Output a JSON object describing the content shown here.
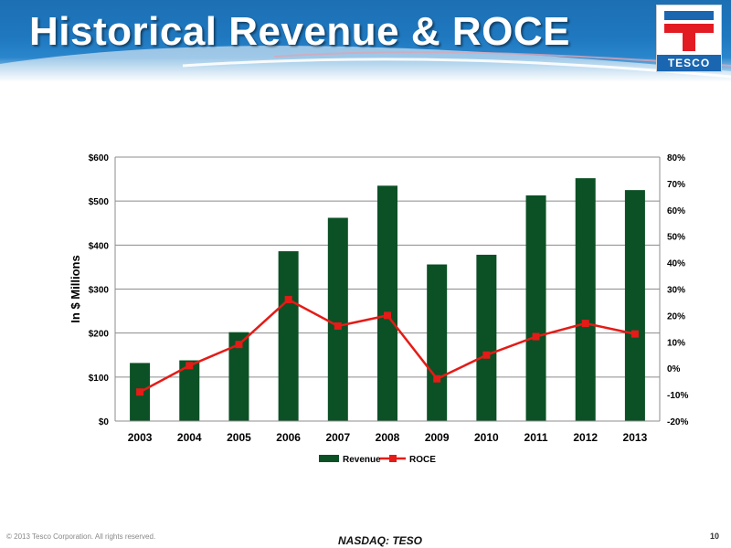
{
  "slide": {
    "title": "Historical Revenue & ROCE",
    "logo_text": "TESCO",
    "footer_copyright": "© 2013 Tesco Corporation. All rights reserved.",
    "footer_ticker": "NASDAQ: TESO",
    "page_number": "10"
  },
  "colors": {
    "revenue_bar": "#0b5125",
    "roce_line": "#e41b17",
    "header_blue": "#1f78bf",
    "logo_red": "#e31b23",
    "logo_blue": "#1a66b0"
  },
  "chart_data": {
    "type": "bar",
    "categories": [
      "2003",
      "2004",
      "2005",
      "2006",
      "2007",
      "2008",
      "2009",
      "2010",
      "2011",
      "2012",
      "2013"
    ],
    "series": [
      {
        "name": "Revenue",
        "type": "bar",
        "axis": "left",
        "values": [
          132,
          138,
          202,
          386,
          462,
          535,
          356,
          378,
          513,
          552,
          525
        ]
      },
      {
        "name": "ROCE",
        "type": "line",
        "axis": "right",
        "values": [
          -9,
          1,
          9,
          26,
          16,
          20,
          -4,
          5,
          12,
          17,
          13
        ]
      }
    ],
    "ylabel": "In $ Millions",
    "y_left": {
      "min": 0,
      "max": 600,
      "ticks": [
        "$0",
        "$100",
        "$200",
        "$300",
        "$400",
        "$500",
        "$600"
      ]
    },
    "y_right": {
      "min": -20,
      "max": 80,
      "ticks": [
        "-20%",
        "-10%",
        "0%",
        "10%",
        "20%",
        "30%",
        "40%",
        "50%",
        "60%",
        "70%",
        "80%"
      ]
    },
    "grid": true,
    "legend": "bottom"
  }
}
